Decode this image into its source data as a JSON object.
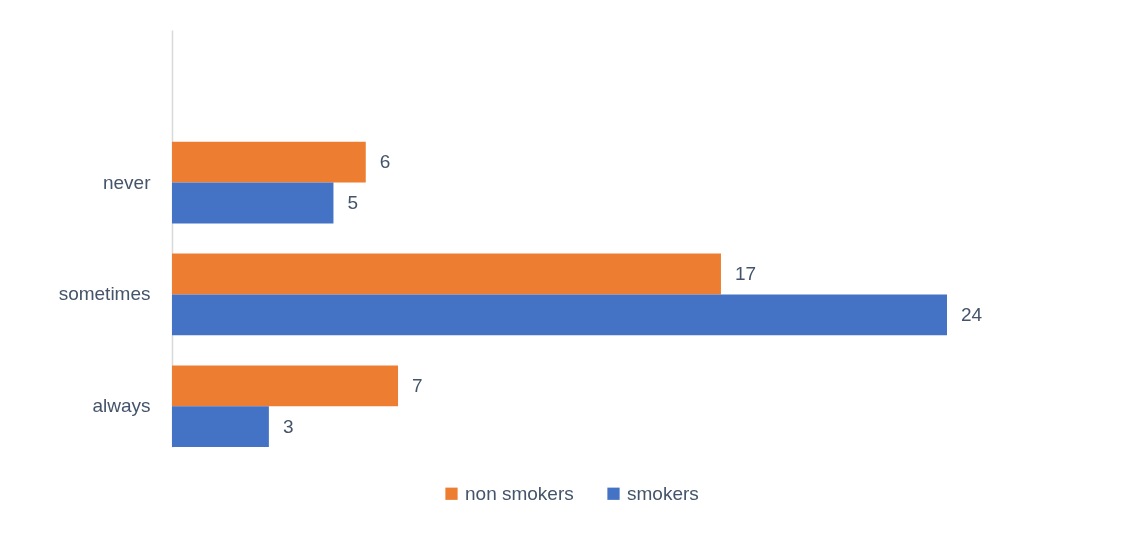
{
  "chart_data": {
    "type": "bar",
    "orientation": "horizontal",
    "categories": [
      null,
      "never",
      "sometimes",
      "always"
    ],
    "series": [
      {
        "name": "non smokers",
        "color": "#ed7d31",
        "values": [
          null,
          6,
          17,
          7
        ]
      },
      {
        "name": "smokers",
        "color": "#4472c4",
        "values": [
          null,
          5,
          24,
          3
        ]
      }
    ],
    "data_labels": true,
    "legend": "bottom"
  }
}
